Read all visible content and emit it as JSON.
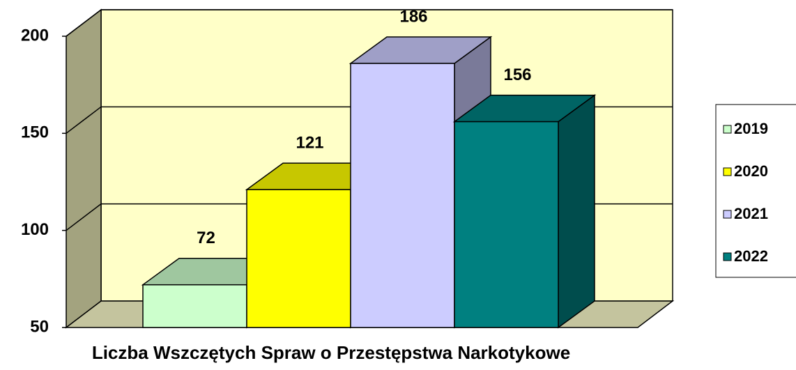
{
  "chart_data": {
    "type": "bar",
    "x_label": "Liczba Wszczętych Spraw o Przestępstwa Narkotykowe",
    "series": [
      {
        "name": "2019",
        "color": "#ccffcc",
        "values": [
          72
        ]
      },
      {
        "name": "2020",
        "color": "#ffff00",
        "values": [
          121
        ]
      },
      {
        "name": "2021",
        "color": "#ccccff",
        "values": [
          186
        ]
      },
      {
        "name": "2022",
        "color": "#008080",
        "values": [
          156
        ]
      }
    ],
    "ylim": [
      50,
      200
    ],
    "yticks": [
      50,
      100,
      150,
      200
    ],
    "grid": true,
    "legend": "right"
  }
}
